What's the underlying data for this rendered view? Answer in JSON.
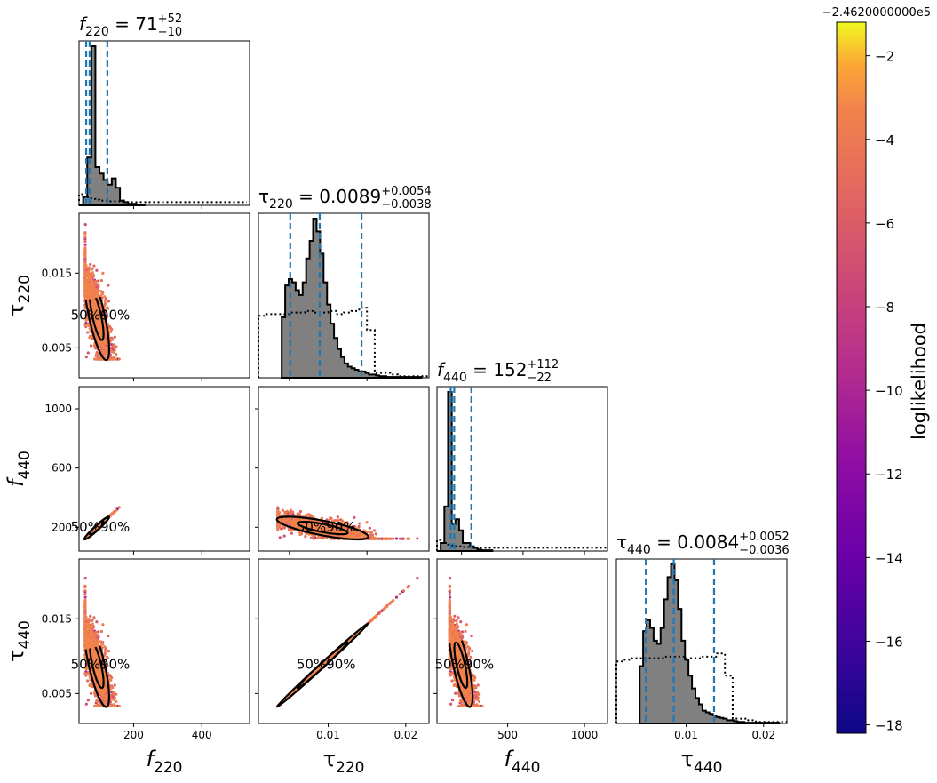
{
  "figure": {
    "colorbar_label": "loglikelihood",
    "colorbar_offset": "−2.4620000000e5",
    "colorbar_ticks": [
      "−2",
      "−4",
      "−6",
      "−8",
      "−10",
      "−12",
      "−14",
      "−16",
      "−18"
    ],
    "colormap": "plasma",
    "contour_levels": [
      "50%",
      "90%"
    ]
  },
  "colors": {
    "hist_fill": "#808080",
    "hist_edge": "#000000",
    "quantile_line": "#1f77b4",
    "prior_line": "#000000",
    "contour": "#000000"
  },
  "chart_data": {
    "type": "scatter",
    "kind": "corner plot",
    "parameters": [
      {
        "name": "f_220",
        "base": "f",
        "sub": "220",
        "median": "71",
        "plus": "+52",
        "minus": "−10",
        "range": [
          40,
          540
        ],
        "ticks": [
          200,
          400
        ],
        "tick_labels": [
          "200",
          "400"
        ],
        "quantiles": [
          61,
          71,
          123
        ]
      },
      {
        "name": "tau_220",
        "base": "τ",
        "sub": "220",
        "median": "0.0089",
        "plus": "+0.0054",
        "minus": "−0.0038",
        "range": [
          0.001,
          0.023
        ],
        "ticks": [
          0.005,
          0.015
        ],
        "tick_labels": [
          "0.005",
          "0.015"
        ],
        "bottom_ticks": [
          0.01,
          0.02
        ],
        "bottom_tick_labels": [
          "0.01",
          "0.02"
        ],
        "quantiles": [
          0.0051,
          0.0089,
          0.0143
        ]
      },
      {
        "name": "f_440",
        "base": "f",
        "sub": "440",
        "median": "152",
        "plus": "+112",
        "minus": "−22",
        "range": [
          40,
          1150
        ],
        "ticks": [
          200,
          600,
          1000
        ],
        "tick_labels": [
          "200",
          "600",
          "1000"
        ],
        "bottom_ticks": [
          500,
          1000
        ],
        "bottom_tick_labels": [
          "500",
          "1000"
        ],
        "quantiles": [
          130,
          152,
          264
        ]
      },
      {
        "name": "tau_440",
        "base": "τ",
        "sub": "440",
        "median": "0.0084",
        "plus": "+0.0052",
        "minus": "−0.0036",
        "range": [
          0.001,
          0.023
        ],
        "ticks": [
          0.005,
          0.015
        ],
        "tick_labels": [
          "0.005",
          "0.015"
        ],
        "bottom_ticks": [
          0.01,
          0.02
        ],
        "bottom_tick_labels": [
          "0.01",
          "0.02"
        ],
        "quantiles": [
          0.0048,
          0.0084,
          0.0136
        ]
      }
    ],
    "histograms": [
      {
        "edges_start": 40,
        "bin_width": 12,
        "counts": [
          0.0,
          0.05,
          0.3,
          1.0,
          0.24,
          0.2,
          0.16,
          0.13,
          0.17,
          0.11,
          0.03,
          0.02,
          0.01,
          0.01,
          0.005,
          0.005
        ],
        "prior": [
          0.07,
          0.05,
          0.05,
          0.04,
          0.035,
          0.03,
          0.03,
          0.025,
          0.025,
          0.025,
          0.02,
          0.02,
          0.02,
          0.02,
          0.02,
          0.02,
          0.02,
          0.02,
          0.02,
          0.02,
          0.02,
          0.02,
          0.02,
          0.02,
          0.02,
          0.02,
          0.02,
          0.02,
          0.02,
          0.02,
          0.02,
          0.02,
          0.02,
          0.02,
          0.02,
          0.02,
          0.02,
          0.02,
          0.02,
          0.02,
          0.02
        ]
      },
      {
        "edges_start": 0.004,
        "bin_width": 0.00045,
        "counts": [
          0.38,
          0.58,
          0.62,
          0.6,
          0.55,
          0.52,
          0.6,
          0.75,
          0.86,
          1.0,
          0.92,
          0.78,
          0.6,
          0.46,
          0.34,
          0.25,
          0.18,
          0.13,
          0.09,
          0.07,
          0.06,
          0.05,
          0.04,
          0.04,
          0.03,
          0.02,
          0.02,
          0.015,
          0.01,
          0.01,
          0.005,
          0.005,
          0.005,
          0.005,
          0.005,
          0.005,
          0.005,
          0.005,
          0.005,
          0.005
        ],
        "prior_start": 0.001,
        "prior_width": 0.001,
        "prior": [
          0.39,
          0.4,
          0.4,
          0.4,
          0.41,
          0.41,
          0.42,
          0.41,
          0.41,
          0.42,
          0.4,
          0.41,
          0.42,
          0.44,
          0.3,
          0.03,
          0.03,
          0.02,
          0.01,
          0.01,
          0.01,
          0.01
        ]
      },
      {
        "edges_start": 40,
        "bin_width": 24,
        "counts": [
          0.0,
          0.05,
          0.28,
          1.0,
          0.17,
          0.2,
          0.13,
          0.05,
          0.05,
          0.03,
          0.02,
          0.01,
          0.005,
          0.005,
          0.005
        ],
        "prior": [
          0.07,
          0.05,
          0.05,
          0.04,
          0.035,
          0.03,
          0.03,
          0.025,
          0.025,
          0.025,
          0.02,
          0.02,
          0.02,
          0.02,
          0.02,
          0.02,
          0.02,
          0.02,
          0.02,
          0.02,
          0.02,
          0.02,
          0.02,
          0.02,
          0.02,
          0.02,
          0.02,
          0.02,
          0.02,
          0.02,
          0.02,
          0.02,
          0.02,
          0.02,
          0.02,
          0.02,
          0.02,
          0.02,
          0.02,
          0.02,
          0.02,
          0.02,
          0.02,
          0.02,
          0.02,
          0.02
        ]
      },
      {
        "edges_start": 0.004,
        "bin_width": 0.00045,
        "counts": [
          0.36,
          0.58,
          0.65,
          0.6,
          0.52,
          0.5,
          0.6,
          0.78,
          0.92,
          1.0,
          0.9,
          0.72,
          0.52,
          0.4,
          0.3,
          0.22,
          0.16,
          0.12,
          0.08,
          0.07,
          0.06,
          0.05,
          0.04,
          0.035,
          0.03,
          0.02,
          0.02,
          0.015,
          0.01,
          0.01,
          0.005,
          0.005,
          0.005,
          0.005,
          0.005,
          0.005,
          0.005,
          0.005,
          0.005,
          0.005
        ],
        "prior_start": 0.001,
        "prior_width": 0.001,
        "prior": [
          0.39,
          0.4,
          0.41,
          0.41,
          0.41,
          0.41,
          0.42,
          0.42,
          0.42,
          0.41,
          0.41,
          0.42,
          0.42,
          0.44,
          0.3,
          0.03,
          0.03,
          0.02,
          0.01,
          0.01,
          0.01,
          0.01
        ]
      }
    ],
    "colorbar_range": [
      -18.2,
      -1.2
    ]
  }
}
